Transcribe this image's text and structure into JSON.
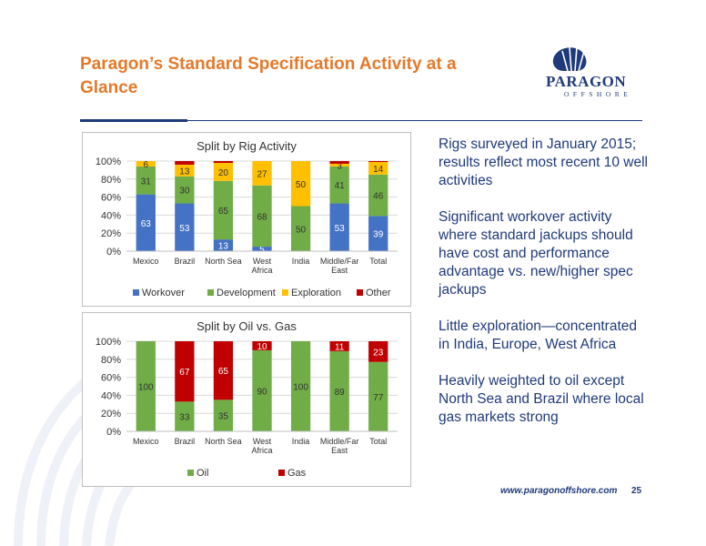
{
  "title": "Paragon’s Standard Specification Activity at a Glance",
  "logo": {
    "name": "PARAGON",
    "sub": "OFFSHORE"
  },
  "bullets": [
    "Rigs surveyed in January 2015; results reflect most recent 10 well activities",
    "Significant workover activity where standard jackups should have cost and performance advantage vs. new/higher spec jackups",
    "Little exploration—concentrated in India, Europe, West Africa",
    "Heavily weighted to oil except North Sea and Brazil where local gas markets strong"
  ],
  "footer": {
    "url": "www.paragonoffshore.com",
    "page": "25"
  },
  "chart_data": [
    {
      "type": "bar",
      "stacked": true,
      "title": "Split by Rig Activity",
      "categories": [
        "Mexico",
        "Brazil",
        "North Sea",
        "West Africa",
        "India",
        "Middle/Far East",
        "Total"
      ],
      "ylim": [
        0,
        100
      ],
      "yticks": [
        "0%",
        "20%",
        "40%",
        "60%",
        "80%",
        "100%"
      ],
      "legend_position": "bottom",
      "series": [
        {
          "name": "Workover",
          "color": "#4472c4",
          "values": [
            63,
            53,
            13,
            5,
            0,
            53,
            39
          ],
          "labels": [
            "63",
            "53",
            "13",
            "5",
            "",
            "53",
            "39"
          ]
        },
        {
          "name": "Development",
          "color": "#70ad47",
          "values": [
            31,
            30,
            65,
            68,
            50,
            41,
            46
          ],
          "labels": [
            "31",
            "30",
            "65",
            "68",
            "50",
            "41",
            "46"
          ]
        },
        {
          "name": "Exploration",
          "color": "#ffc000",
          "values": [
            6,
            13,
            20,
            27,
            50,
            3,
            14
          ],
          "labels": [
            "6",
            "13",
            "20",
            "27",
            "50",
            "3",
            "14"
          ]
        },
        {
          "name": "Other",
          "color": "#c00000",
          "values": [
            0,
            4,
            2,
            0,
            0,
            3,
            1
          ],
          "labels": [
            "",
            "",
            "",
            "",
            "",
            "",
            ""
          ]
        }
      ]
    },
    {
      "type": "bar",
      "stacked": true,
      "title": "Split by Oil vs. Gas",
      "categories": [
        "Mexico",
        "Brazil",
        "North Sea",
        "West Africa",
        "India",
        "Middle/Far East",
        "Total"
      ],
      "ylim": [
        0,
        100
      ],
      "yticks": [
        "0%",
        "20%",
        "40%",
        "60%",
        "80%",
        "100%"
      ],
      "legend_position": "bottom",
      "series": [
        {
          "name": "Oil",
          "color": "#70ad47",
          "values": [
            100,
            33,
            35,
            90,
            100,
            89,
            77
          ],
          "labels": [
            "100",
            "33",
            "35",
            "90",
            "100",
            "89",
            "77"
          ]
        },
        {
          "name": "Gas",
          "color": "#c00000",
          "values": [
            0,
            67,
            65,
            10,
            0,
            11,
            23
          ],
          "labels": [
            "",
            "67",
            "65",
            "10",
            "",
            "11",
            "23"
          ]
        }
      ]
    }
  ]
}
